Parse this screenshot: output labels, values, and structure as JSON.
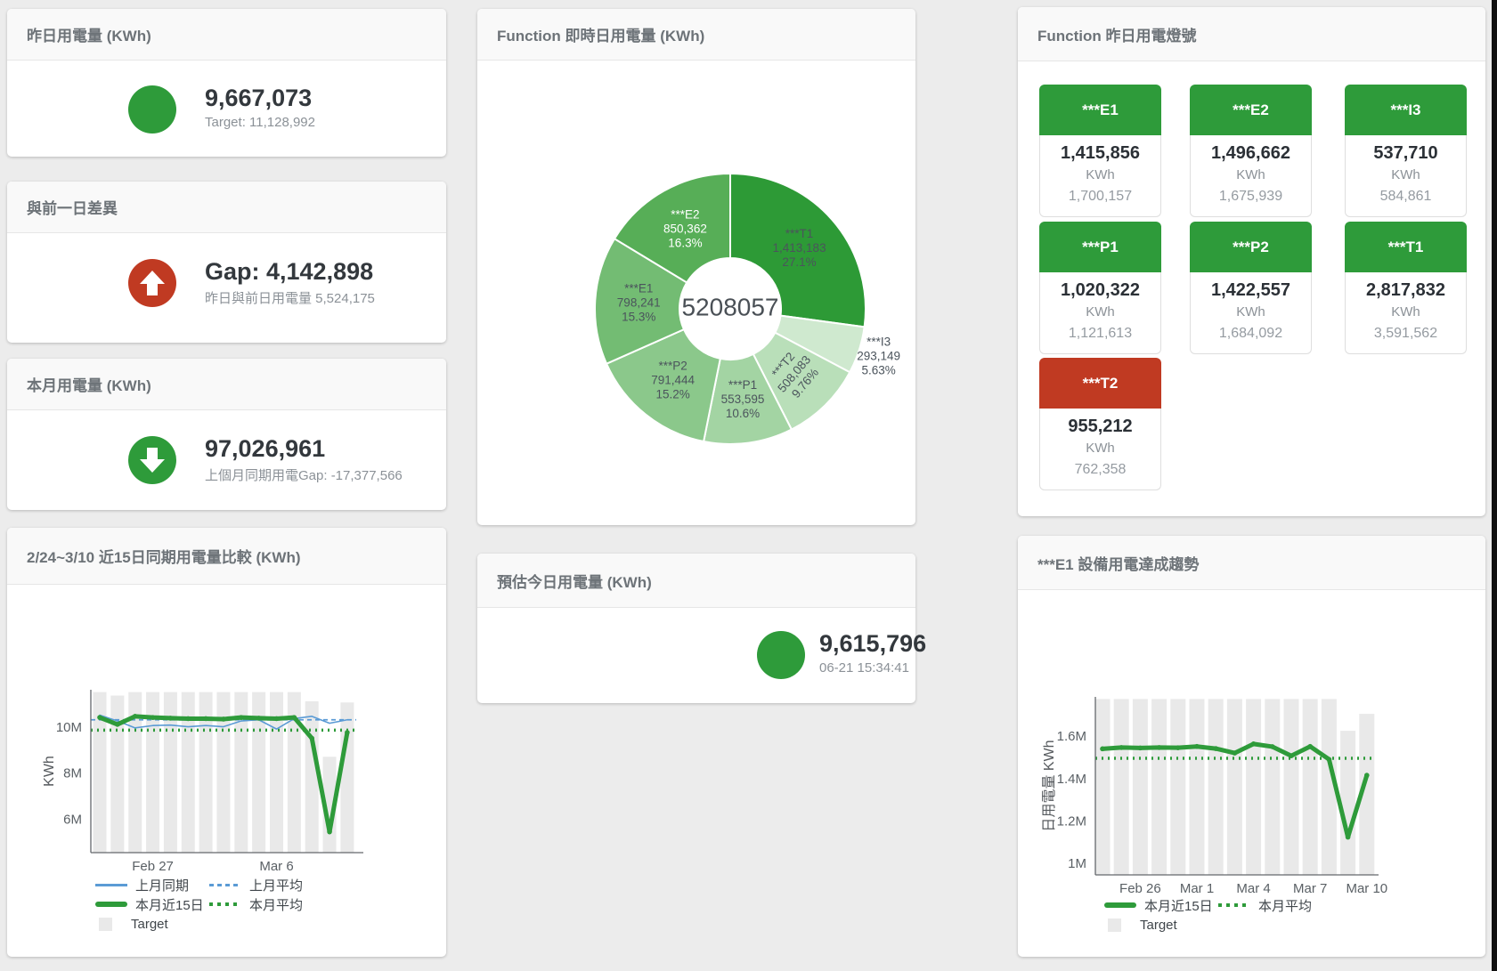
{
  "page": {
    "background": "#ececec"
  },
  "colors": {
    "green": "#2e9b3a",
    "red": "#c03a22",
    "blue_line": "#5b9bd5",
    "bar_gray": "#e9e9e9",
    "title_text": "#6d7378",
    "value_text": "#33383d",
    "sub_text": "#8b9197"
  },
  "cards": {
    "yesterday": {
      "title": "昨日用電量 (KWh)",
      "value": "9,667,073",
      "subtext": "Target: 11,128,992"
    },
    "gap": {
      "title": "與前一日差異",
      "value": "Gap: 4,142,898",
      "subtext": "昨日與前日用電量 5,524,175"
    },
    "month": {
      "title": "本月用電量 (KWh)",
      "value": "97,026,961",
      "subtext": "上個月同期用電Gap: -17,377,566"
    },
    "estimate": {
      "title": "預估今日用電量 (KWh)",
      "value": "9,615,796",
      "subtext": "06-21 15:34:41"
    },
    "donut": {
      "title": "Function 即時日用電量 (KWh)"
    },
    "lights": {
      "title": "Function 昨日用電燈號",
      "tiles": [
        {
          "id": "e1",
          "label": "***E1",
          "value": "1,415,856",
          "unit": "KWh",
          "target": "1,700,157",
          "status": "green"
        },
        {
          "id": "e2",
          "label": "***E2",
          "value": "1,496,662",
          "unit": "KWh",
          "target": "1,675,939",
          "status": "green"
        },
        {
          "id": "i3",
          "label": "***I3",
          "value": "537,710",
          "unit": "KWh",
          "target": "584,861",
          "status": "green"
        },
        {
          "id": "p1",
          "label": "***P1",
          "value": "1,020,322",
          "unit": "KWh",
          "target": "1,121,613",
          "status": "green"
        },
        {
          "id": "p2",
          "label": "***P2",
          "value": "1,422,557",
          "unit": "KWh",
          "target": "1,684,092",
          "status": "green"
        },
        {
          "id": "t1",
          "label": "***T1",
          "value": "2,817,832",
          "unit": "KWh",
          "target": "3,591,562",
          "status": "green"
        },
        {
          "id": "t2",
          "label": "***T2",
          "value": "955,212",
          "unit": "KWh",
          "target": "762,358",
          "status": "red"
        }
      ]
    },
    "trend15": {
      "title": "2/24~3/10 近15日同期用電量比較 (KWh)"
    },
    "e1trend": {
      "title": "***E1 設備用電達成趨勢"
    }
  },
  "chart_data": [
    {
      "type": "pie",
      "title": "Function 即時日用電量 (KWh)",
      "center_label": "5208057",
      "legend_position": "none",
      "segments": [
        {
          "id": "t1",
          "name": "***T1",
          "value": 1413183,
          "value_label": "1,413,183",
          "pct": "27.1%",
          "color": "#2d9a36"
        },
        {
          "id": "i3",
          "name": "***I3",
          "value": 293149,
          "value_label": "293,149",
          "pct": "5.63%",
          "color": "#cfe9cf",
          "label_outside": true
        },
        {
          "id": "t2",
          "name": "***T2",
          "value": 508083,
          "value_label": "508,083",
          "pct": "9.76%",
          "color": "#b9dfb9",
          "label_rotate": -50
        },
        {
          "id": "p1",
          "name": "***P1",
          "value": 553595,
          "value_label": "553,595",
          "pct": "10.6%",
          "color": "#a3d4a3"
        },
        {
          "id": "p2",
          "name": "***P2",
          "value": 791444,
          "value_label": "791,444",
          "pct": "15.2%",
          "color": "#8bc88b"
        },
        {
          "id": "e1",
          "name": "***E1",
          "value": 798241,
          "value_label": "798,241",
          "pct": "15.3%",
          "color": "#73bc73"
        },
        {
          "id": "e2",
          "name": "***E2",
          "value": 850362,
          "value_label": "850,362",
          "pct": "16.3%",
          "color": "#57ae57",
          "label_color": "#ffffff"
        }
      ]
    },
    {
      "type": "bar+line",
      "title": "2/24~3/10 近15日同期用電量比較 (KWh)",
      "ylabel": "KWh",
      "ylim": [
        4.6,
        11.65
      ],
      "yticks": [
        {
          "value": 6,
          "label": "6M"
        },
        {
          "value": 8,
          "label": "8M"
        },
        {
          "value": 10,
          "label": "10M"
        }
      ],
      "x_count": 15,
      "xticks": [
        {
          "index": 3,
          "label": "Feb 27"
        },
        {
          "index": 10,
          "label": "Mar 6"
        }
      ],
      "bars": {
        "name": "Target",
        "color": "#e9e9e9",
        "values": [
          11.55,
          11.4,
          11.55,
          11.55,
          11.55,
          11.55,
          11.55,
          11.55,
          11.55,
          11.55,
          11.55,
          11.55,
          11.15,
          8.75,
          11.1
        ]
      },
      "series": [
        {
          "name": "上月同期",
          "style": "blue-solid",
          "values": [
            10.55,
            10.3,
            10.0,
            10.1,
            10.12,
            10.05,
            10.1,
            10.05,
            10.3,
            10.35,
            9.95,
            10.4,
            10.5,
            10.2,
            10.35
          ]
        },
        {
          "name": "上月平均",
          "style": "blue-dashed",
          "avg": 10.35
        },
        {
          "name": "本月近15日",
          "style": "green-thick",
          "values": [
            10.45,
            10.15,
            10.5,
            10.45,
            10.42,
            10.4,
            10.4,
            10.38,
            10.45,
            10.42,
            10.4,
            10.45,
            9.55,
            5.5,
            9.8
          ]
        },
        {
          "name": "本月平均",
          "style": "green-dotted",
          "avg": 9.9
        }
      ],
      "legend_rows": [
        [
          "上月同期",
          "上月平均"
        ],
        [
          "本月近15日",
          "本月平均"
        ],
        [
          "Target"
        ]
      ]
    },
    {
      "type": "bar+line",
      "title": "***E1 設備用電達成趨勢",
      "ylabel": "日用電量 KWh",
      "ylim": [
        0.95,
        1.79
      ],
      "yticks": [
        {
          "value": 1,
          "label": "1M"
        },
        {
          "value": 1.2,
          "label": "1.2M"
        },
        {
          "value": 1.4,
          "label": "1.4M"
        },
        {
          "value": 1.6,
          "label": "1.6M"
        }
      ],
      "x_count": 15,
      "xticks": [
        {
          "index": 2,
          "label": "Feb 26"
        },
        {
          "index": 5,
          "label": "Mar 1"
        },
        {
          "index": 8,
          "label": "Mar 4"
        },
        {
          "index": 11,
          "label": "Mar 7"
        },
        {
          "index": 14,
          "label": "Mar 10"
        }
      ],
      "bars": {
        "name": "Target",
        "color": "#e9e9e9",
        "values": [
          1.78,
          1.78,
          1.78,
          1.78,
          1.78,
          1.78,
          1.78,
          1.78,
          1.78,
          1.78,
          1.78,
          1.78,
          1.78,
          1.63,
          1.71
        ]
      },
      "series": [
        {
          "name": "本月近15日",
          "style": "green-thick",
          "values": [
            1.545,
            1.551,
            1.549,
            1.551,
            1.55,
            1.556,
            1.546,
            1.525,
            1.568,
            1.555,
            1.512,
            1.556,
            1.495,
            1.128,
            1.42
          ]
        },
        {
          "name": "本月平均",
          "style": "green-dotted",
          "avg": 1.5
        }
      ],
      "legend_rows": [
        [
          "本月近15日",
          "本月平均"
        ],
        [
          "Target"
        ]
      ]
    }
  ]
}
